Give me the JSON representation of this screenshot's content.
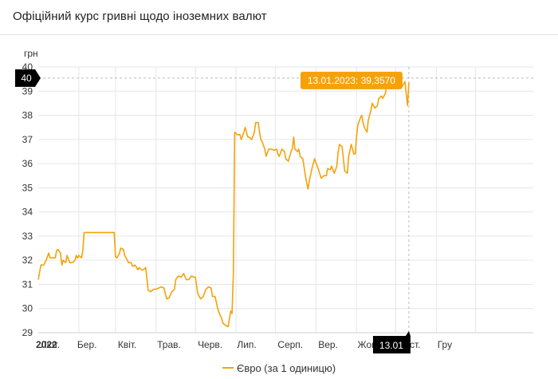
{
  "header": {
    "title": "Офіційний курс гривні щодо іноземних валют"
  },
  "chart_data": {
    "type": "line",
    "title": "Офіційний курс гривні щодо іноземних валют",
    "ylabel": "грн",
    "ylim": [
      29,
      40
    ],
    "yticks": [
      29,
      30,
      31,
      32,
      33,
      34,
      35,
      36,
      37,
      38,
      39,
      40
    ],
    "grid": true,
    "legend_position": "bottom",
    "color": "#f5a20a",
    "xlim": [
      0,
      378
    ],
    "x_ticks": [
      {
        "label": "2022",
        "x": 0,
        "bold": true
      },
      {
        "label": "Лют.",
        "x": 31
      },
      {
        "label": "Бер.",
        "x": 59
      },
      {
        "label": "Квіт.",
        "x": 90
      },
      {
        "label": "Трав.",
        "x": 120
      },
      {
        "label": "Черв.",
        "x": 151
      },
      {
        "label": "Лип.",
        "x": 181
      },
      {
        "label": "Серп.",
        "x": 212
      },
      {
        "label": "Вер.",
        "x": 243
      },
      {
        "label": "Жовт.",
        "x": 273
      },
      {
        "label": "Лист.",
        "x": 304
      },
      {
        "label": "Гру",
        "x": 334
      }
    ],
    "crosshair": {
      "x_label": "13.01",
      "y_label": "40",
      "y_value": 39.54
    },
    "tooltip": "13.01.2023: 39,3570",
    "series": [
      {
        "name": "Євро (за 1 одиницю)",
        "points": [
          [
            0,
            31.2
          ],
          [
            2,
            31.8
          ],
          [
            4,
            31.8
          ],
          [
            6,
            32.0
          ],
          [
            8,
            32.3
          ],
          [
            9,
            32.1
          ],
          [
            11,
            32.1
          ],
          [
            13,
            32.1
          ],
          [
            14,
            32.4
          ],
          [
            15,
            32.45
          ],
          [
            17,
            32.3
          ],
          [
            18,
            31.8
          ],
          [
            19,
            32.0
          ],
          [
            21,
            31.9
          ],
          [
            22,
            32.2
          ],
          [
            24,
            31.9
          ],
          [
            26,
            31.9
          ],
          [
            28,
            32.0
          ],
          [
            29,
            32.2
          ],
          [
            30,
            32.1
          ],
          [
            31,
            32.2
          ],
          [
            33,
            32.1
          ],
          [
            34,
            32.4
          ],
          [
            35,
            33.15
          ],
          [
            40,
            33.15
          ],
          [
            45,
            33.15
          ],
          [
            50,
            33.15
          ],
          [
            55,
            33.15
          ],
          [
            58,
            33.15
          ],
          [
            59,
            32.15
          ],
          [
            60,
            32.1
          ],
          [
            62,
            32.3
          ],
          [
            63,
            32.5
          ],
          [
            65,
            32.45
          ],
          [
            66,
            32.2
          ],
          [
            68,
            32.0
          ],
          [
            69,
            31.9
          ],
          [
            71,
            31.9
          ],
          [
            72,
            31.75
          ],
          [
            74,
            31.8
          ],
          [
            76,
            31.6
          ],
          [
            77,
            31.7
          ],
          [
            79,
            31.6
          ],
          [
            80,
            31.6
          ],
          [
            82,
            31.7
          ],
          [
            83,
            31.2
          ],
          [
            84,
            30.75
          ],
          [
            86,
            30.7
          ],
          [
            88,
            30.8
          ],
          [
            90,
            30.8
          ],
          [
            92,
            30.85
          ],
          [
            94,
            30.9
          ],
          [
            96,
            30.85
          ],
          [
            98,
            30.4
          ],
          [
            100,
            30.45
          ],
          [
            102,
            30.7
          ],
          [
            104,
            30.8
          ],
          [
            105,
            31.2
          ],
          [
            107,
            31.35
          ],
          [
            109,
            31.3
          ],
          [
            111,
            31.45
          ],
          [
            113,
            31.2
          ],
          [
            115,
            31.2
          ],
          [
            117,
            31.35
          ],
          [
            119,
            31.3
          ],
          [
            120,
            31.3
          ],
          [
            121,
            30.9
          ],
          [
            122,
            30.6
          ],
          [
            124,
            30.4
          ],
          [
            126,
            30.5
          ],
          [
            128,
            30.8
          ],
          [
            130,
            30.9
          ],
          [
            132,
            30.85
          ],
          [
            133,
            30.5
          ],
          [
            135,
            30.5
          ],
          [
            137,
            30.0
          ],
          [
            139,
            29.7
          ],
          [
            140,
            29.6
          ],
          [
            141,
            29.4
          ],
          [
            143,
            29.3
          ],
          [
            145,
            29.25
          ],
          [
            146,
            29.6
          ],
          [
            147,
            29.9
          ],
          [
            148,
            29.8
          ],
          [
            149,
            31.5
          ],
          [
            150,
            37.3
          ],
          [
            152,
            37.2
          ],
          [
            154,
            37.2
          ],
          [
            155,
            37.0
          ],
          [
            157,
            37.3
          ],
          [
            158,
            37.5
          ],
          [
            160,
            37.1
          ],
          [
            161,
            37.1
          ],
          [
            163,
            37.0
          ],
          [
            165,
            37.3
          ],
          [
            166,
            37.7
          ],
          [
            168,
            37.7
          ],
          [
            169,
            37.3
          ],
          [
            170,
            37.0
          ],
          [
            171,
            36.9
          ],
          [
            173,
            36.6
          ],
          [
            174,
            36.3
          ],
          [
            176,
            36.6
          ],
          [
            178,
            36.6
          ],
          [
            180,
            36.55
          ],
          [
            182,
            36.6
          ],
          [
            183,
            36.4
          ],
          [
            184,
            36.3
          ],
          [
            186,
            36.6
          ],
          [
            188,
            36.5
          ],
          [
            189,
            36.2
          ],
          [
            191,
            36.1
          ],
          [
            193,
            36.5
          ],
          [
            194,
            36.6
          ],
          [
            195,
            37.1
          ],
          [
            196,
            36.6
          ],
          [
            198,
            36.5
          ],
          [
            199,
            36.6
          ],
          [
            200,
            36.3
          ],
          [
            202,
            36.2
          ],
          [
            204,
            35.5
          ],
          [
            205,
            35.2
          ],
          [
            206,
            34.95
          ],
          [
            207,
            35.3
          ],
          [
            209,
            35.8
          ],
          [
            211,
            36.2
          ],
          [
            213,
            35.9
          ],
          [
            214,
            35.75
          ],
          [
            216,
            35.4
          ],
          [
            218,
            35.5
          ],
          [
            220,
            35.5
          ],
          [
            221,
            35.8
          ],
          [
            223,
            35.75
          ],
          [
            224,
            35.9
          ],
          [
            226,
            35.6
          ],
          [
            228,
            35.9
          ],
          [
            229,
            36.5
          ],
          [
            230,
            36.8
          ],
          [
            232,
            36.7
          ],
          [
            233,
            36.2
          ],
          [
            234,
            35.7
          ],
          [
            236,
            35.6
          ],
          [
            237,
            36.3
          ],
          [
            239,
            36.8
          ],
          [
            241,
            36.4
          ],
          [
            242,
            36.4
          ],
          [
            243,
            37.1
          ],
          [
            244,
            37.6
          ],
          [
            246,
            37.9
          ],
          [
            247,
            38.0
          ],
          [
            248,
            37.7
          ],
          [
            249,
            37.5
          ],
          [
            251,
            37.3
          ],
          [
            252,
            37.8
          ],
          [
            254,
            38.2
          ],
          [
            255,
            38.5
          ],
          [
            257,
            38.3
          ],
          [
            259,
            38.4
          ],
          [
            260,
            38.7
          ],
          [
            262,
            38.8
          ],
          [
            263,
            38.7
          ],
          [
            265,
            38.9
          ],
          [
            266,
            39.2
          ],
          [
            268,
            39.1
          ],
          [
            270,
            39.1
          ],
          [
            272,
            39.2
          ],
          [
            274,
            39.1
          ],
          [
            276,
            39.15
          ],
          [
            278,
            39.2
          ],
          [
            280,
            39.4
          ],
          [
            281,
            38.9
          ],
          [
            282,
            38.4
          ],
          [
            283,
            39.357
          ]
        ]
      }
    ]
  }
}
